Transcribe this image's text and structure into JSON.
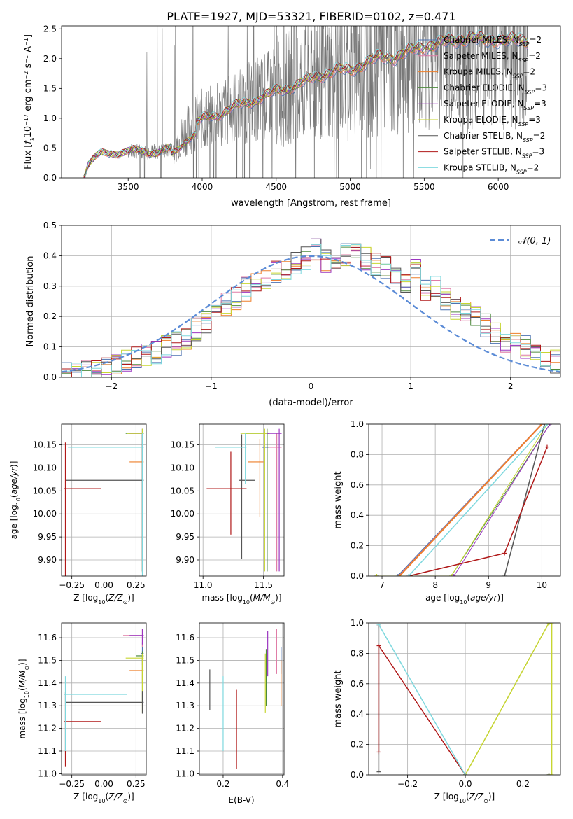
{
  "figure_title": "PLATE=1927, MJD=53321, FIBERID=0102, z=0.471",
  "colors": {
    "chabrier_miles": "#4c72b0",
    "salpeter_miles": "#e07ba6",
    "kroupa_miles": "#ee7f2a",
    "chabrier_elodie": "#4d8a3c",
    "salpeter_elodie": "#9b36c0",
    "kroupa_elodie": "#c7d631",
    "chabrier_stelib": "#555555",
    "salpeter_stelib": "#b01818",
    "kroupa_stelib": "#7ed8de",
    "gaussian": "#5b8bd6",
    "data": "#777777"
  },
  "chart_data": [
    {
      "id": "spectrum",
      "type": "line",
      "title": "PLATE=1927, MJD=53321, FIBERID=0102, z=0.471",
      "xlabel": "wavelength [Angstrom, rest frame]",
      "ylabel": "Flux [f_λ 10^-17 erg cm^-2 s^-1 A^-1]",
      "xlim": [
        3050,
        6420
      ],
      "ylim": [
        0,
        2.55
      ],
      "xticks": [
        3500,
        4000,
        4500,
        5000,
        5500,
        6000
      ],
      "yticks": [
        0.0,
        0.5,
        1.0,
        1.5,
        2.0,
        2.5
      ],
      "grid": false,
      "legend": "top-right",
      "series": [
        {
          "name": "Chabrier MILES, N_SSP=2",
          "color_key": "chabrier_miles"
        },
        {
          "name": "Salpeter MILES, N_SSP=2",
          "color_key": "salpeter_miles"
        },
        {
          "name": "Kroupa MILES, N_SSP=2",
          "color_key": "kroupa_miles"
        },
        {
          "name": "Chabrier ELODIE, N_SSP=3",
          "color_key": "chabrier_elodie"
        },
        {
          "name": "Salpeter ELODIE, N_SSP=3",
          "color_key": "salpeter_elodie"
        },
        {
          "name": "Kroupa ELODIE, N_SSP=3",
          "color_key": "kroupa_elodie"
        },
        {
          "name": "Chabrier STELIB, N_SSP=2",
          "color_key": "chabrier_stelib"
        },
        {
          "name": "Salpeter STELIB, N_SSP=3",
          "color_key": "salpeter_stelib"
        },
        {
          "name": "Kroupa STELIB, N_SSP=2",
          "color_key": "kroupa_stelib"
        }
      ],
      "model_continuum": {
        "x": [
          3200,
          3230,
          3300,
          3400,
          3500,
          3600,
          3700,
          3800,
          3900,
          4000,
          4100,
          4200,
          4300,
          4400,
          4500,
          4600,
          4700,
          4800,
          4900,
          5000,
          5100,
          5200,
          5300,
          5400,
          5500,
          5600,
          5700,
          5800,
          5900,
          6000,
          6100,
          6200
        ],
        "y": [
          0.02,
          0.25,
          0.38,
          0.42,
          0.45,
          0.44,
          0.44,
          0.48,
          0.82,
          0.98,
          1.05,
          1.18,
          1.25,
          1.35,
          1.45,
          1.52,
          1.62,
          1.72,
          1.8,
          1.8,
          1.92,
          2.02,
          2.02,
          2.12,
          2.2,
          2.25,
          2.3,
          2.35,
          2.3,
          2.32,
          2.3,
          2.3
        ]
      },
      "observed_data": {
        "x_start": 3500,
        "x_end": 6200,
        "range_note": "noisy observed spectrum, 0 to >2.55"
      }
    },
    {
      "id": "residuals",
      "type": "histogram",
      "xlabel": "(data-model)/error",
      "ylabel": "Normed distribution",
      "xlim": [
        -2.5,
        2.5
      ],
      "ylim": [
        0,
        0.5
      ],
      "xticks": [
        -2,
        -1,
        0,
        1,
        2
      ],
      "yticks": [
        0.0,
        0.1,
        0.2,
        0.3,
        0.4,
        0.5
      ],
      "grid": true,
      "legend": "top-right",
      "gaussian_label": "𝒩(0, 1)",
      "bin_edges": [
        -2.5,
        -2.4,
        -2.3,
        -2.2,
        -2.1,
        -2.0,
        -1.9,
        -1.8,
        -1.7,
        -1.6,
        -1.5,
        -1.4,
        -1.3,
        -1.2,
        -1.1,
        -1.0,
        -0.9,
        -0.8,
        -0.7,
        -0.6,
        -0.5,
        -0.4,
        -0.3,
        -0.2,
        -0.1,
        0.0,
        0.1,
        0.2,
        0.3,
        0.4,
        0.5,
        0.6,
        0.7,
        0.8,
        0.9,
        1.0,
        1.1,
        1.2,
        1.3,
        1.4,
        1.5,
        1.6,
        1.7,
        1.8,
        1.9,
        2.0,
        2.1,
        2.2,
        2.3,
        2.4,
        2.5
      ],
      "base_heights": [
        0.01,
        0.015,
        0.02,
        0.03,
        0.035,
        0.045,
        0.05,
        0.06,
        0.075,
        0.08,
        0.1,
        0.11,
        0.13,
        0.16,
        0.18,
        0.21,
        0.24,
        0.26,
        0.29,
        0.31,
        0.33,
        0.35,
        0.36,
        0.38,
        0.39,
        0.42,
        0.38,
        0.37,
        0.4,
        0.41,
        0.39,
        0.37,
        0.36,
        0.33,
        0.31,
        0.35,
        0.29,
        0.3,
        0.26,
        0.23,
        0.22,
        0.2,
        0.17,
        0.15,
        0.12,
        0.11,
        0.1,
        0.08,
        0.06,
        0.05
      ]
    },
    {
      "id": "age_vs_Z",
      "type": "errorbar",
      "xlabel": "Z [log10(Z/Z⊙)]",
      "ylabel": "age [log10(age/yr)]",
      "xlim": [
        -0.33,
        0.33
      ],
      "ylim": [
        9.865,
        10.195
      ],
      "xticks": [
        -0.25,
        0.0,
        0.25
      ],
      "yticks": [
        9.9,
        9.95,
        10.0,
        10.05,
        10.1,
        10.15
      ],
      "grid": true,
      "points": [
        {
          "key": "chabrier_miles",
          "x": 0.3,
          "y": 10.145,
          "xerr": [
            0.01,
            0.01
          ],
          "yerr": [
            0.27,
            0.03
          ]
        },
        {
          "key": "salpeter_miles",
          "x": 0.3,
          "y": 10.145,
          "xerr": [
            0.15,
            0.01
          ],
          "yerr": [
            0.27,
            0.03
          ]
        },
        {
          "key": "kroupa_miles",
          "x": 0.3,
          "y": 10.113,
          "xerr": [
            0.1,
            0.01
          ],
          "yerr": [
            0.24,
            0.06
          ]
        },
        {
          "key": "chabrier_elodie",
          "x": 0.3,
          "y": 10.175,
          "xerr": [
            0.13,
            0.01
          ],
          "yerr": [
            0.3,
            0.01
          ]
        },
        {
          "key": "salpeter_elodie",
          "x": 0.3,
          "y": 10.175,
          "xerr": [
            0.1,
            0.01
          ],
          "yerr": [
            0.3,
            0.01
          ]
        },
        {
          "key": "kroupa_elodie",
          "x": 0.3,
          "y": 10.175,
          "xerr": [
            0.12,
            0.01
          ],
          "yerr": [
            0.3,
            0.01
          ]
        },
        {
          "key": "chabrier_stelib",
          "x": 0.3,
          "y": 10.073,
          "xerr": [
            0.6,
            0.01
          ],
          "yerr": [
            0.17,
            0.1
          ]
        },
        {
          "key": "salpeter_stelib",
          "x": -0.3,
          "y": 10.055,
          "xerr": [
            0.01,
            0.28
          ],
          "yerr": [
            0.2,
            0.1
          ]
        },
        {
          "key": "kroupa_stelib",
          "x": 0.3,
          "y": 10.145,
          "xerr": [
            0.58,
            0.01
          ],
          "yerr": [
            0.3,
            0.03
          ]
        }
      ]
    },
    {
      "id": "age_vs_mass",
      "type": "errorbar",
      "xlabel": "mass [log10(M/M⊙)]",
      "ylabel": "",
      "xlim": [
        10.97,
        11.67
      ],
      "ylim": [
        9.865,
        10.195
      ],
      "xticks": [
        11.0,
        11.5
      ],
      "yticks": [
        9.9,
        9.95,
        10.0,
        10.05,
        10.1,
        10.15
      ],
      "grid": true,
      "points": [
        {
          "key": "chabrier_miles",
          "x": 11.53,
          "y": 10.145,
          "xerr": [
            0.04,
            0.05
          ],
          "yerr": [
            0.27,
            0.03
          ]
        },
        {
          "key": "salpeter_miles",
          "x": 11.61,
          "y": 10.145,
          "xerr": [
            0.07,
            0.04
          ],
          "yerr": [
            0.27,
            0.03
          ]
        },
        {
          "key": "kroupa_miles",
          "x": 11.47,
          "y": 10.113,
          "xerr": [
            0.1,
            0.03
          ],
          "yerr": [
            0.12,
            0.05
          ]
        },
        {
          "key": "chabrier_elodie",
          "x": 11.53,
          "y": 10.175,
          "xerr": [
            0.18,
            0.02
          ],
          "yerr": [
            0.3,
            0.01
          ]
        },
        {
          "key": "salpeter_elodie",
          "x": 11.63,
          "y": 10.175,
          "xerr": [
            0.1,
            0.02
          ],
          "yerr": [
            0.3,
            0.01
          ]
        },
        {
          "key": "kroupa_elodie",
          "x": 11.51,
          "y": 10.175,
          "xerr": [
            0.2,
            0.02
          ],
          "yerr": [
            0.3,
            0.01
          ]
        },
        {
          "key": "chabrier_stelib",
          "x": 11.32,
          "y": 10.073,
          "xerr": [
            0.02,
            0.11
          ],
          "yerr": [
            0.17,
            0.1
          ]
        },
        {
          "key": "salpeter_stelib",
          "x": 11.23,
          "y": 10.055,
          "xerr": [
            0.2,
            0.13
          ],
          "yerr": [
            0.1,
            0.08
          ]
        },
        {
          "key": "kroupa_stelib",
          "x": 11.35,
          "y": 10.145,
          "xerr": [
            0.25,
            0.01
          ],
          "yerr": [
            0.08,
            0.03
          ]
        }
      ]
    },
    {
      "id": "mass_weight_vs_age",
      "type": "line",
      "xlabel": "age [log10(age/yr)]",
      "ylabel": "mass weight",
      "xlim": [
        6.75,
        10.35
      ],
      "ylim": [
        0,
        1
      ],
      "xticks": [
        7,
        8,
        9,
        10
      ],
      "yticks": [
        0.0,
        0.2,
        0.4,
        0.6,
        0.8,
        1.0
      ],
      "grid": true,
      "series": [
        {
          "key": "chabrier_miles",
          "x": [
            7.3,
            10.0
          ],
          "y": [
            0.0,
            1.0
          ],
          "width": 2
        },
        {
          "key": "salpeter_miles",
          "x": [
            7.32,
            10.0
          ],
          "y": [
            0.0,
            1.0
          ],
          "width": 2
        },
        {
          "key": "kroupa_miles",
          "x": [
            7.33,
            10.0
          ],
          "y": [
            0.0,
            1.0
          ],
          "width": 2
        },
        {
          "key": "chabrier_elodie",
          "x": [
            6.9,
            8.3,
            10.15
          ],
          "y": [
            0.0,
            0.0,
            1.0
          ],
          "width": 1
        },
        {
          "key": "salpeter_elodie",
          "x": [
            6.9,
            8.35,
            10.15
          ],
          "y": [
            0.0,
            0.0,
            1.0
          ],
          "width": 1
        },
        {
          "key": "kroupa_elodie",
          "x": [
            6.9,
            8.3,
            10.1
          ],
          "y": [
            0.0,
            0.0,
            1.0
          ],
          "width": 1
        },
        {
          "key": "chabrier_stelib",
          "x": [
            9.3,
            10.05
          ],
          "y": [
            0.0,
            1.0
          ],
          "width": 1.5
        },
        {
          "key": "salpeter_stelib",
          "x": [
            7.5,
            9.3,
            10.1
          ],
          "y": [
            0.0,
            0.15,
            0.85
          ],
          "width": 1.5
        },
        {
          "key": "kroupa_stelib",
          "x": [
            7.5,
            10.1
          ],
          "y": [
            0.0,
            1.0
          ],
          "width": 1.5
        }
      ]
    },
    {
      "id": "mass_vs_Z",
      "type": "errorbar",
      "xlabel": "Z [log10(Z/Z⊙)]",
      "ylabel": "mass [log10(M/M⊙)]",
      "xlim": [
        -0.33,
        0.33
      ],
      "ylim": [
        10.995,
        11.665
      ],
      "xticks": [
        -0.25,
        0.0,
        0.25
      ],
      "yticks": [
        11.0,
        11.1,
        11.2,
        11.3,
        11.4,
        11.5,
        11.6
      ],
      "grid": true,
      "points": [
        {
          "key": "chabrier_miles",
          "x": 0.3,
          "y": 11.53,
          "xerr": [
            0.01,
            0.01
          ],
          "yerr": [
            0.05,
            0.05
          ]
        },
        {
          "key": "salpeter_miles",
          "x": 0.3,
          "y": 11.61,
          "xerr": [
            0.15,
            0.01
          ],
          "yerr": [
            0.05,
            0.03
          ]
        },
        {
          "key": "kroupa_miles",
          "x": 0.3,
          "y": 11.455,
          "xerr": [
            0.1,
            0.01
          ],
          "yerr": [
            0.05,
            0.05
          ]
        },
        {
          "key": "chabrier_elodie",
          "x": 0.3,
          "y": 11.52,
          "xerr": [
            0.05,
            0.01
          ],
          "yerr": [
            0.2,
            0.02
          ]
        },
        {
          "key": "salpeter_elodie",
          "x": 0.3,
          "y": 11.61,
          "xerr": [
            0.1,
            0.01
          ],
          "yerr": [
            0.04,
            0.03
          ]
        },
        {
          "key": "kroupa_elodie",
          "x": 0.3,
          "y": 11.51,
          "xerr": [
            0.13,
            0.01
          ],
          "yerr": [
            0.24,
            0.02
          ]
        },
        {
          "key": "chabrier_stelib",
          "x": 0.3,
          "y": 11.315,
          "xerr": [
            0.6,
            0.01
          ],
          "yerr": [
            0.05,
            0.05
          ]
        },
        {
          "key": "salpeter_stelib",
          "x": -0.3,
          "y": 11.23,
          "xerr": [
            0.01,
            0.28
          ],
          "yerr": [
            0.2,
            0.13
          ]
        },
        {
          "key": "kroupa_stelib",
          "x": -0.3,
          "y": 11.35,
          "xerr": [
            0.01,
            0.48
          ],
          "yerr": [
            0.25,
            0.08
          ]
        }
      ]
    },
    {
      "id": "mass_vs_EBV",
      "type": "errorbar",
      "xlabel": "E(B-V)",
      "ylabel": "",
      "xlim": [
        0.12,
        0.405
      ],
      "ylim": [
        10.995,
        11.665
      ],
      "xticks": [
        0.2,
        0.4
      ],
      "yticks": [
        11.0,
        11.1,
        11.2,
        11.3,
        11.4,
        11.5,
        11.6
      ],
      "grid": true,
      "points": [
        {
          "key": "chabrier_miles",
          "x": 0.395,
          "y": 11.52,
          "xerr": [
            0,
            0
          ],
          "yerr": [
            0.08,
            0.04
          ]
        },
        {
          "key": "salpeter_miles",
          "x": 0.38,
          "y": 11.58,
          "xerr": [
            0,
            0
          ],
          "yerr": [
            0.14,
            0.06
          ]
        },
        {
          "key": "kroupa_miles",
          "x": 0.395,
          "y": 11.4,
          "xerr": [
            0,
            0
          ],
          "yerr": [
            0.1,
            0.1
          ]
        },
        {
          "key": "chabrier_elodie",
          "x": 0.345,
          "y": 11.45,
          "xerr": [
            0,
            0
          ],
          "yerr": [
            0.15,
            0.1
          ]
        },
        {
          "key": "salpeter_elodie",
          "x": 0.35,
          "y": 11.55,
          "xerr": [
            0,
            0
          ],
          "yerr": [
            0.12,
            0.08
          ]
        },
        {
          "key": "kroupa_elodie",
          "x": 0.342,
          "y": 11.43,
          "xerr": [
            0,
            0
          ],
          "yerr": [
            0.16,
            0.1
          ]
        },
        {
          "key": "chabrier_stelib",
          "x": 0.155,
          "y": 11.37,
          "xerr": [
            0,
            0
          ],
          "yerr": [
            0.09,
            0.09
          ]
        },
        {
          "key": "salpeter_stelib",
          "x": 0.245,
          "y": 11.2,
          "xerr": [
            0,
            0
          ],
          "yerr": [
            0.18,
            0.17
          ]
        },
        {
          "key": "kroupa_stelib",
          "x": 0.2,
          "y": 11.3,
          "xerr": [
            0,
            0
          ],
          "yerr": [
            0.2,
            0.13
          ]
        }
      ]
    },
    {
      "id": "mass_weight_vs_Z",
      "type": "line",
      "xlabel": "Z [log10(Z/Z⊙)]",
      "ylabel": "mass weight",
      "xlim": [
        -0.335,
        0.33
      ],
      "ylim": [
        0,
        1
      ],
      "xticks": [
        -0.2,
        0.0,
        0.2
      ],
      "yticks": [
        0.0,
        0.2,
        0.4,
        0.6,
        0.8,
        1.0
      ],
      "grid": true,
      "series": [
        {
          "key": "chabrier_miles",
          "x": [
            0.0,
            0.29,
            0.29
          ],
          "y": [
            0.0,
            1.0,
            0.0
          ],
          "width": 1
        },
        {
          "key": "kroupa_miles",
          "x": [
            0.0,
            0.29,
            0.29
          ],
          "y": [
            0.0,
            1.0,
            0.0
          ],
          "width": 1
        },
        {
          "key": "chabrier_elodie",
          "x": [
            0.0,
            0.29,
            0.29
          ],
          "y": [
            0.0,
            1.0,
            0.0
          ],
          "width": 1
        },
        {
          "key": "kroupa_elodie",
          "x": [
            0.0,
            0.29,
            0.3,
            0.3
          ],
          "y": [
            0.0,
            1.0,
            1.0,
            0.0
          ],
          "width": 1.5
        },
        {
          "key": "chabrier_stelib",
          "x": [
            -0.3,
            -0.3
          ],
          "y": [
            0.02,
            0.98
          ],
          "width": 1.5
        },
        {
          "key": "salpeter_stelib",
          "x": [
            -0.3,
            -0.3,
            0.0
          ],
          "y": [
            0.15,
            0.85,
            0.0
          ],
          "width": 1.5
        },
        {
          "key": "kroupa_stelib",
          "x": [
            -0.3,
            0.0
          ],
          "y": [
            0.99,
            0.0
          ],
          "width": 1.5
        }
      ]
    }
  ]
}
